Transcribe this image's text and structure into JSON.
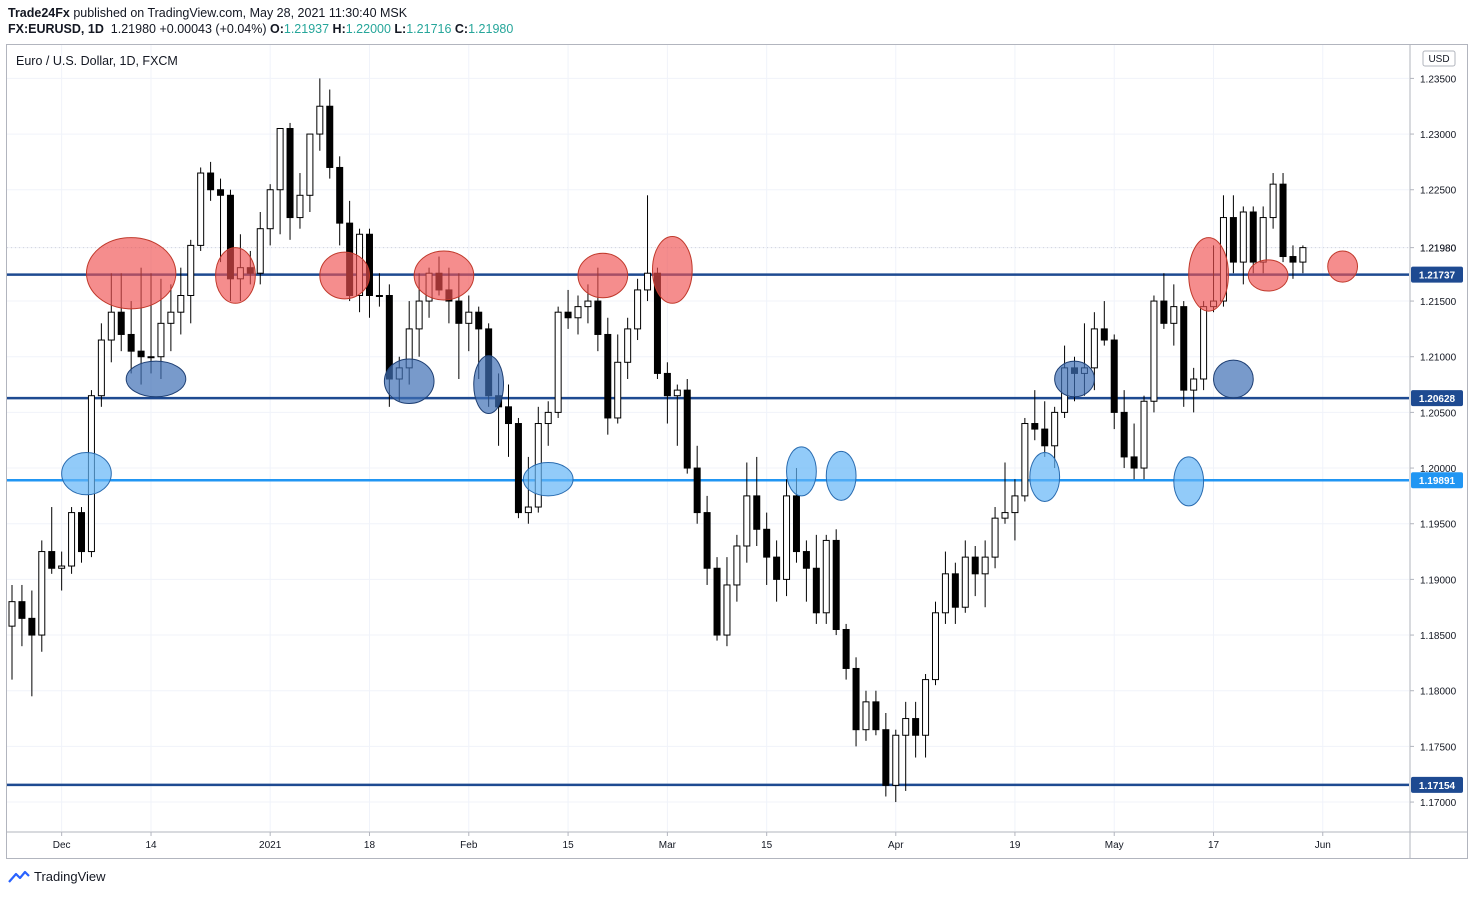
{
  "header": {
    "publisher": "Trade24Fx",
    "published_text": "published on TradingView.com, May 28, 2021 11:30:40 MSK",
    "symbol": "FX:EURUSD, 1D",
    "last": "1.21980",
    "change": "+0.00043 (+0.04%)",
    "o_label": "O:",
    "o": "1.21937",
    "h_label": "H:",
    "h": "1.22000",
    "l_label": "L:",
    "l": "1.21716",
    "c_label": "C:",
    "c": "1.21980"
  },
  "chart_data": {
    "type": "candlestick",
    "title": "Euro / U.S. Dollar, 1D, FXCM",
    "currency": "USD",
    "ylim": [
      1.1674,
      1.238
    ],
    "y_ticks": [
      "1.23500",
      "1.23000",
      "1.22500",
      "1.21980",
      "1.21500",
      "1.21000",
      "1.20500",
      "1.20000",
      "1.19500",
      "1.19000",
      "1.18500",
      "1.18000",
      "1.17500",
      "1.17000"
    ],
    "y_tick_values": [
      1.235,
      1.23,
      1.225,
      1.2198,
      1.215,
      1.21,
      1.205,
      1.2,
      1.195,
      1.19,
      1.185,
      1.18,
      1.175,
      1.17
    ],
    "x_ticks": [
      "Dec",
      "14",
      "2021",
      "18",
      "Feb",
      "15",
      "Mar",
      "15",
      "Apr",
      "19",
      "May",
      "17",
      "Jun"
    ],
    "x_tick_index": [
      5,
      14,
      26,
      36,
      46,
      56,
      66,
      76,
      89,
      101,
      111,
      121,
      132
    ],
    "grid": true,
    "colors": {
      "up": "#ffffff",
      "down": "#000000",
      "wick": "#000000",
      "level_dark": "#1e4a91",
      "level_light": "#2196f3",
      "resist": "#f05050",
      "support": "#3f6fb5",
      "support_light": "#64b5f6"
    },
    "levels": [
      {
        "value": 1.21737,
        "label": "1.21737",
        "style": "dark"
      },
      {
        "value": 1.20628,
        "label": "1.20628",
        "style": "dark"
      },
      {
        "value": 1.19891,
        "label": "1.19891",
        "style": "light"
      },
      {
        "value": 1.17154,
        "label": "1.17154",
        "style": "dark"
      }
    ],
    "last_price_label": "1.21980",
    "candles": [
      [
        1.1858,
        1.1895,
        1.181,
        1.188
      ],
      [
        1.188,
        1.1895,
        1.184,
        1.1865
      ],
      [
        1.1865,
        1.189,
        1.1795,
        1.185
      ],
      [
        1.185,
        1.1935,
        1.1835,
        1.1925
      ],
      [
        1.1925,
        1.1965,
        1.1905,
        1.191
      ],
      [
        1.191,
        1.1925,
        1.189,
        1.1912
      ],
      [
        1.1912,
        1.1965,
        1.1905,
        1.196
      ],
      [
        1.196,
        1.1965,
        1.1915,
        1.1925
      ],
      [
        1.1925,
        1.207,
        1.192,
        1.2065
      ],
      [
        1.2065,
        1.213,
        1.2055,
        1.2115
      ],
      [
        1.2115,
        1.2175,
        1.2095,
        1.214
      ],
      [
        1.214,
        1.2175,
        1.2105,
        1.212
      ],
      [
        1.212,
        1.215,
        1.2085,
        1.2105
      ],
      [
        1.2105,
        1.218,
        1.2075,
        1.21
      ],
      [
        1.21,
        1.2175,
        1.2085,
        1.21
      ],
      [
        1.21,
        1.217,
        1.208,
        1.213
      ],
      [
        1.213,
        1.2165,
        1.2105,
        1.214
      ],
      [
        1.214,
        1.218,
        1.212,
        1.2155
      ],
      [
        1.2155,
        1.2205,
        1.213,
        1.22
      ],
      [
        1.22,
        1.227,
        1.2195,
        1.2265
      ],
      [
        1.2265,
        1.2275,
        1.224,
        1.225
      ],
      [
        1.225,
        1.226,
        1.2185,
        1.2245
      ],
      [
        1.2245,
        1.225,
        1.215,
        1.217
      ],
      [
        1.217,
        1.221,
        1.215,
        1.218
      ],
      [
        1.218,
        1.2195,
        1.2165,
        1.2175
      ],
      [
        1.2175,
        1.223,
        1.2165,
        1.2215
      ],
      [
        1.2215,
        1.2255,
        1.22,
        1.225
      ],
      [
        1.225,
        1.23,
        1.221,
        1.2305
      ],
      [
        1.2305,
        1.231,
        1.2205,
        1.2225
      ],
      [
        1.2225,
        1.2265,
        1.2215,
        1.2245
      ],
      [
        1.2245,
        1.23,
        1.223,
        1.23
      ],
      [
        1.23,
        1.235,
        1.2285,
        1.2325
      ],
      [
        1.2325,
        1.234,
        1.226,
        1.227
      ],
      [
        1.227,
        1.228,
        1.22,
        1.222
      ],
      [
        1.222,
        1.224,
        1.215,
        1.2155
      ],
      [
        1.2155,
        1.2215,
        1.214,
        1.221
      ],
      [
        1.221,
        1.2215,
        1.2135,
        1.2155
      ],
      [
        1.2155,
        1.2175,
        1.2145,
        1.2155
      ],
      [
        1.2155,
        1.2165,
        1.2055,
        1.208
      ],
      [
        1.208,
        1.21,
        1.206,
        1.209
      ],
      [
        1.209,
        1.215,
        1.2075,
        1.2125
      ],
      [
        1.2125,
        1.2175,
        1.21,
        1.215
      ],
      [
        1.215,
        1.218,
        1.2135,
        1.2175
      ],
      [
        1.2175,
        1.219,
        1.2155,
        1.216
      ],
      [
        1.216,
        1.218,
        1.213,
        1.215
      ],
      [
        1.215,
        1.2175,
        1.208,
        1.213
      ],
      [
        1.213,
        1.2155,
        1.2105,
        1.214
      ],
      [
        1.214,
        1.2145,
        1.208,
        1.2125
      ],
      [
        1.2125,
        1.213,
        1.2055,
        1.2065
      ],
      [
        1.2065,
        1.2085,
        1.202,
        1.2055
      ],
      [
        1.2055,
        1.2075,
        1.201,
        1.204
      ],
      [
        1.204,
        1.2045,
        1.1955,
        1.196
      ],
      [
        1.196,
        1.201,
        1.195,
        1.1965
      ],
      [
        1.1965,
        1.2055,
        1.196,
        1.204
      ],
      [
        1.204,
        1.206,
        1.202,
        1.205
      ],
      [
        1.205,
        1.2145,
        1.2045,
        1.214
      ],
      [
        1.214,
        1.216,
        1.2125,
        1.2135
      ],
      [
        1.2135,
        1.2155,
        1.212,
        1.2145
      ],
      [
        1.2145,
        1.2165,
        1.213,
        1.215
      ],
      [
        1.215,
        1.218,
        1.2105,
        1.212
      ],
      [
        1.212,
        1.2135,
        1.203,
        1.2045
      ],
      [
        1.2045,
        1.212,
        1.204,
        1.2095
      ],
      [
        1.2095,
        1.2135,
        1.208,
        1.2125
      ],
      [
        1.2125,
        1.217,
        1.2115,
        1.216
      ],
      [
        1.216,
        1.2245,
        1.215,
        1.2175
      ],
      [
        1.2175,
        1.218,
        1.208,
        1.2085
      ],
      [
        1.2085,
        1.2095,
        1.204,
        1.2065
      ],
      [
        1.2065,
        1.2075,
        1.202,
        1.207
      ],
      [
        1.207,
        1.208,
        1.1995,
        1.2
      ],
      [
        1.2,
        1.202,
        1.195,
        1.196
      ],
      [
        1.196,
        1.1975,
        1.1895,
        1.191
      ],
      [
        1.191,
        1.192,
        1.1845,
        1.185
      ],
      [
        1.185,
        1.192,
        1.184,
        1.1895
      ],
      [
        1.1895,
        1.194,
        1.188,
        1.193
      ],
      [
        1.193,
        1.2005,
        1.1915,
        1.1975
      ],
      [
        1.1975,
        1.201,
        1.193,
        1.1945
      ],
      [
        1.1945,
        1.196,
        1.1895,
        1.192
      ],
      [
        1.192,
        1.1935,
        1.188,
        1.19
      ],
      [
        1.19,
        1.199,
        1.1885,
        1.1975
      ],
      [
        1.1975,
        1.2,
        1.1915,
        1.1925
      ],
      [
        1.1925,
        1.1935,
        1.188,
        1.191
      ],
      [
        1.191,
        1.194,
        1.186,
        1.187
      ],
      [
        1.187,
        1.194,
        1.186,
        1.1935
      ],
      [
        1.1935,
        1.1945,
        1.185,
        1.1855
      ],
      [
        1.1855,
        1.186,
        1.181,
        1.182
      ],
      [
        1.182,
        1.183,
        1.175,
        1.1765
      ],
      [
        1.1765,
        1.18,
        1.1755,
        1.179
      ],
      [
        1.179,
        1.18,
        1.176,
        1.1765
      ],
      [
        1.1765,
        1.178,
        1.1705,
        1.1715
      ],
      [
        1.1715,
        1.1765,
        1.17,
        1.176
      ],
      [
        1.176,
        1.179,
        1.171,
        1.1775
      ],
      [
        1.1775,
        1.179,
        1.174,
        1.176
      ],
      [
        1.176,
        1.1815,
        1.174,
        1.181
      ],
      [
        1.181,
        1.188,
        1.1805,
        1.187
      ],
      [
        1.187,
        1.1925,
        1.186,
        1.1905
      ],
      [
        1.1905,
        1.1915,
        1.186,
        1.1875
      ],
      [
        1.1875,
        1.1935,
        1.187,
        1.192
      ],
      [
        1.192,
        1.193,
        1.1885,
        1.1905
      ],
      [
        1.1905,
        1.1935,
        1.1875,
        1.192
      ],
      [
        1.192,
        1.1965,
        1.191,
        1.1955
      ],
      [
        1.1955,
        1.2005,
        1.195,
        1.196
      ],
      [
        1.196,
        1.199,
        1.1935,
        1.1975
      ],
      [
        1.1975,
        1.2045,
        1.197,
        1.204
      ],
      [
        1.204,
        1.207,
        1.2025,
        1.2035
      ],
      [
        1.2035,
        1.206,
        1.201,
        1.202
      ],
      [
        1.202,
        1.2055,
        1.2,
        1.205
      ],
      [
        1.205,
        1.211,
        1.2045,
        1.209
      ],
      [
        1.209,
        1.21,
        1.206,
        1.2085
      ],
      [
        1.2085,
        1.213,
        1.2065,
        1.209
      ],
      [
        1.209,
        1.214,
        1.207,
        1.2125
      ],
      [
        1.2125,
        1.215,
        1.211,
        1.2115
      ],
      [
        1.2115,
        1.212,
        1.2035,
        1.205
      ],
      [
        1.205,
        1.207,
        1.2,
        1.201
      ],
      [
        1.201,
        1.204,
        1.199,
        1.2
      ],
      [
        1.2,
        1.2065,
        1.199,
        1.206
      ],
      [
        1.206,
        1.2155,
        1.205,
        1.215
      ],
      [
        1.215,
        1.2175,
        1.2125,
        1.213
      ],
      [
        1.213,
        1.2165,
        1.211,
        1.2145
      ],
      [
        1.2145,
        1.215,
        1.2055,
        1.207
      ],
      [
        1.207,
        1.209,
        1.205,
        1.208
      ],
      [
        1.208,
        1.215,
        1.207,
        1.2145
      ],
      [
        1.2145,
        1.22,
        1.214,
        1.215
      ],
      [
        1.215,
        1.2245,
        1.2145,
        1.2225
      ],
      [
        1.2225,
        1.2245,
        1.2175,
        1.2185
      ],
      [
        1.2185,
        1.2235,
        1.2165,
        1.223
      ],
      [
        1.223,
        1.2235,
        1.2175,
        1.2185
      ],
      [
        1.2185,
        1.2235,
        1.2175,
        1.2225
      ],
      [
        1.2225,
        1.2265,
        1.2215,
        1.2255
      ],
      [
        1.2255,
        1.2265,
        1.2185,
        1.219
      ],
      [
        1.219,
        1.22,
        1.217,
        1.2185
      ],
      [
        1.2185,
        1.22,
        1.2175,
        1.2198
      ]
    ],
    "overlays": [
      {
        "kind": "resist",
        "cx": 12,
        "cy": 1.2175,
        "rx": 4.5,
        "ry": 0.0032
      },
      {
        "kind": "resist",
        "cx": 22.5,
        "cy": 1.2173,
        "rx": 2.0,
        "ry": 0.0025
      },
      {
        "kind": "resist",
        "cx": 33.5,
        "cy": 1.2173,
        "rx": 2.5,
        "ry": 0.0021
      },
      {
        "kind": "resist",
        "cx": 43.5,
        "cy": 1.2173,
        "rx": 3.0,
        "ry": 0.0022
      },
      {
        "kind": "resist",
        "cx": 59.5,
        "cy": 1.2173,
        "rx": 2.5,
        "ry": 0.002
      },
      {
        "kind": "resist",
        "cx": 66.5,
        "cy": 1.2178,
        "rx": 2.0,
        "ry": 0.003
      },
      {
        "kind": "resist",
        "cx": 120.5,
        "cy": 1.2174,
        "rx": 2.0,
        "ry": 0.0033
      },
      {
        "kind": "resist",
        "cx": 126.5,
        "cy": 1.2173,
        "rx": 2.0,
        "ry": 0.0014
      },
      {
        "kind": "resist",
        "cx": 134.0,
        "cy": 1.2181,
        "rx": 1.5,
        "ry": 0.0014
      },
      {
        "kind": "support",
        "cx": 14.5,
        "cy": 1.208,
        "rx": 3.0,
        "ry": 0.0016
      },
      {
        "kind": "support",
        "cx": 40.0,
        "cy": 1.2078,
        "rx": 2.5,
        "ry": 0.002
      },
      {
        "kind": "support",
        "cx": 48.0,
        "cy": 1.2075,
        "rx": 1.5,
        "ry": 0.0026
      },
      {
        "kind": "support",
        "cx": 107.0,
        "cy": 1.208,
        "rx": 2.0,
        "ry": 0.0016
      },
      {
        "kind": "support",
        "cx": 123.0,
        "cy": 1.208,
        "rx": 2.0,
        "ry": 0.0017
      },
      {
        "kind": "support_light",
        "cx": 7.5,
        "cy": 1.1995,
        "rx": 2.5,
        "ry": 0.0019
      },
      {
        "kind": "support_light",
        "cx": 54.0,
        "cy": 1.199,
        "rx": 2.5,
        "ry": 0.0015
      },
      {
        "kind": "support_light",
        "cx": 79.5,
        "cy": 1.1997,
        "rx": 1.5,
        "ry": 0.0022
      },
      {
        "kind": "support_light",
        "cx": 83.5,
        "cy": 1.1993,
        "rx": 1.5,
        "ry": 0.0022
      },
      {
        "kind": "support_light",
        "cx": 104.0,
        "cy": 1.1992,
        "rx": 1.5,
        "ry": 0.0022
      },
      {
        "kind": "support_light",
        "cx": 118.5,
        "cy": 1.1988,
        "rx": 1.5,
        "ry": 0.0022
      }
    ]
  },
  "footer": {
    "brand": "TradingView"
  }
}
